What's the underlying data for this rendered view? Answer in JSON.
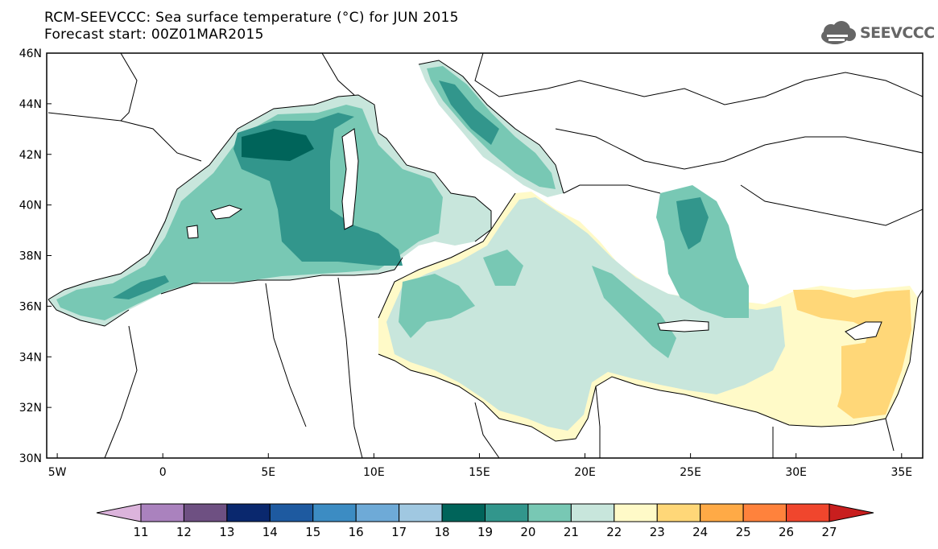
{
  "header": {
    "title_line1": "RCM-SEEVCCC: Sea surface temperature (°C) for JUN 2015",
    "title_line2": "Forecast start: 00Z01MAR2015",
    "logo_text": "SEEVCCC",
    "logo_icon": "cloud-icon"
  },
  "map": {
    "lat_labels": [
      "46N",
      "44N",
      "42N",
      "40N",
      "38N",
      "36N",
      "34N",
      "32N",
      "30N"
    ],
    "lon_labels": [
      "5W",
      "0",
      "5E",
      "10E",
      "15E",
      "20E",
      "25E",
      "30E",
      "35E"
    ],
    "lat_range": [
      30,
      46
    ],
    "lon_range": [
      -5.5,
      36
    ],
    "land_color": "#ffffff",
    "coastline_color": "#000000"
  },
  "colorbar": {
    "ticks": [
      "11",
      "12",
      "13",
      "14",
      "15",
      "16",
      "17",
      "18",
      "19",
      "20",
      "21",
      "22",
      "23",
      "24",
      "25",
      "26",
      "27"
    ],
    "colors": [
      "#dcb4dc",
      "#aa82be",
      "#6e5082",
      "#0a286e",
      "#1e5aa0",
      "#3c8cc3",
      "#6eaad7",
      "#a0c8e1",
      "#00645a",
      "#32968c",
      "#78c8b4",
      "#c8e6dc",
      "#fffac8",
      "#ffd778",
      "#ffaa46",
      "#ff823c",
      "#f0462d",
      "#c81e1e"
    ]
  }
}
